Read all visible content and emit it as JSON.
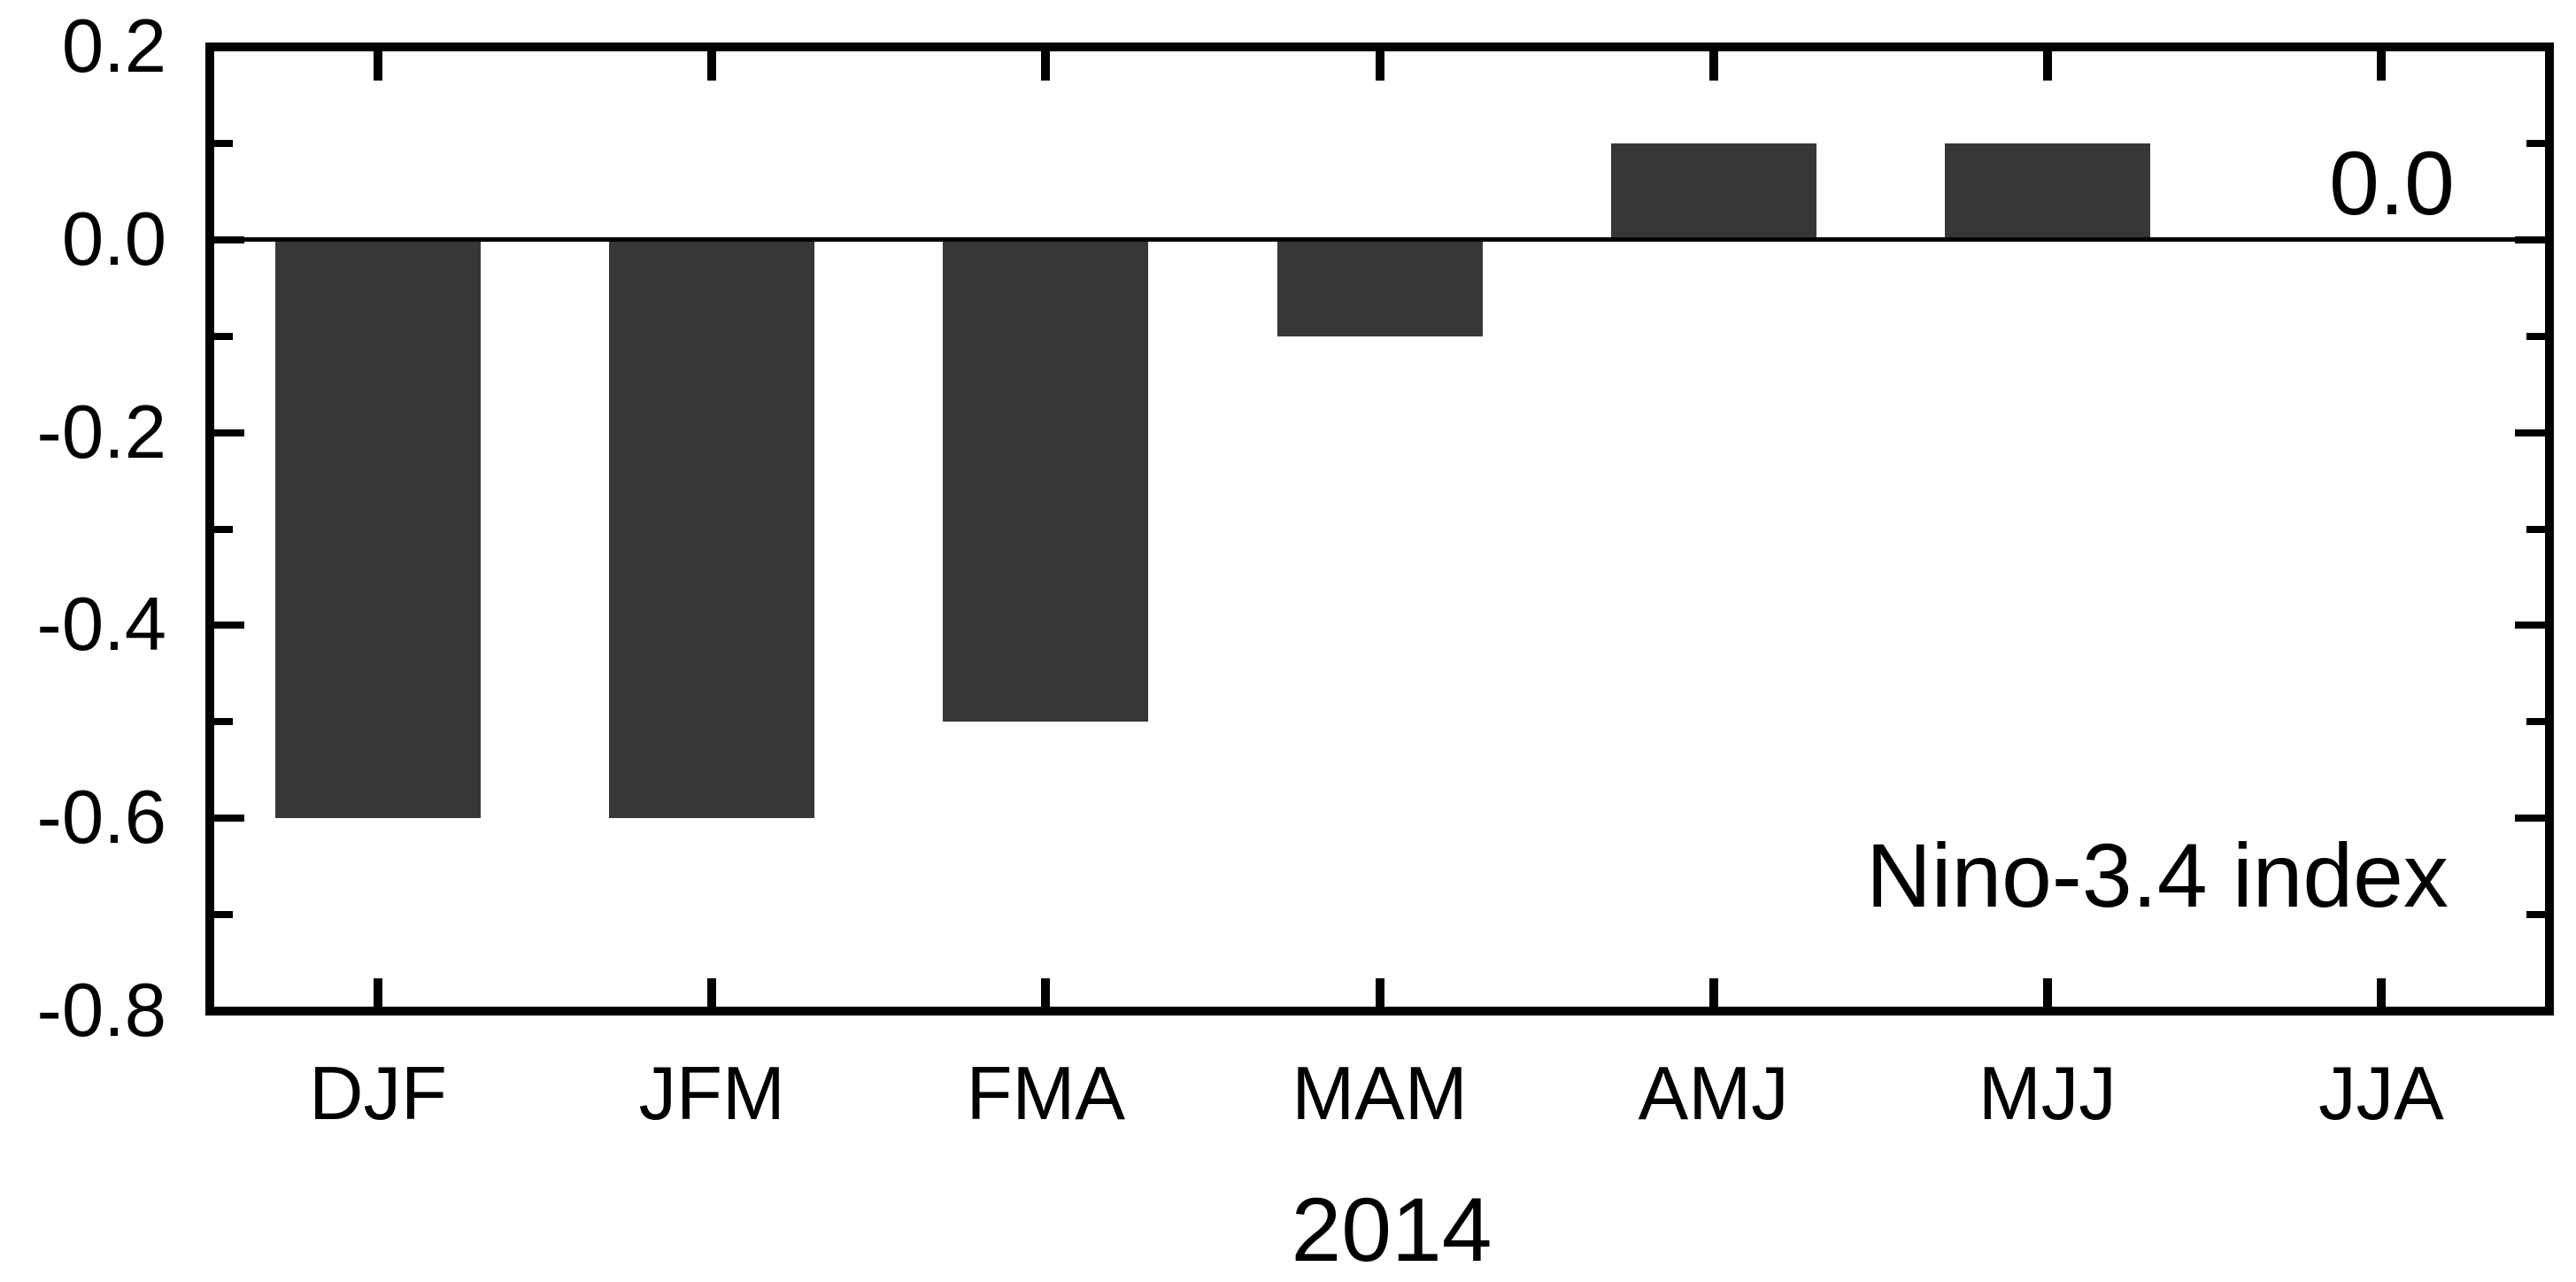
{
  "chart_data": {
    "type": "bar",
    "title": "",
    "categories": [
      "DJF",
      "JFM",
      "FMA",
      "MAM",
      "AMJ",
      "MJJ",
      "JJA"
    ],
    "values": [
      -0.6,
      -0.6,
      -0.5,
      -0.1,
      0.1,
      0.1,
      0.0
    ],
    "series_label": "Nino-3.4 index",
    "annotation": "0.0",
    "xlabel": "2014",
    "ylabel": "",
    "ylim": [
      -0.8,
      0.2
    ],
    "y_major_ticks": [
      0.2,
      0.0,
      -0.2,
      -0.4,
      -0.6,
      -0.8
    ],
    "y_major_tick_labels": [
      "0.2",
      "0.0",
      "-0.2",
      "-0.4",
      "-0.6",
      "-0.8"
    ],
    "y_minor_ticks": [
      0.1,
      -0.1,
      -0.3,
      -0.5,
      -0.7
    ],
    "zero_line": true,
    "grid": false,
    "legend": "none",
    "bar_color": "#373737",
    "axis_color": "#000000",
    "background_color": "#ffffff"
  }
}
